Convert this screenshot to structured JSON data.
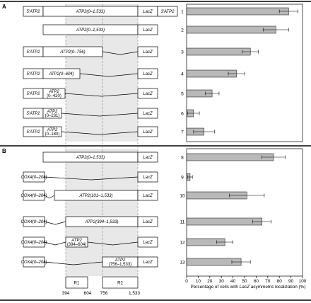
{
  "panels": {
    "a": "A",
    "b": "B"
  },
  "regions": {
    "r1": "R1",
    "r2": "R2"
  },
  "scale_ticks": [
    "394",
    "604",
    "756",
    "1,533"
  ],
  "rows": [
    {
      "num": "1",
      "segments": [
        {
          "t": "5′ATP2",
          "i": true
        },
        {
          "t": "ATP2(0–1,533)",
          "i": true
        },
        {
          "t": "LacZ",
          "i": true
        },
        {
          "t": "3′ATP2",
          "i": true
        }
      ]
    },
    {
      "num": "2",
      "segments": [
        {
          "t": "ATP2(0–1,533)",
          "i": true
        },
        {
          "t": "LacZ",
          "i": true
        }
      ]
    },
    {
      "num": "3",
      "segments": [
        {
          "t": "5′ATP2",
          "i": true
        },
        {
          "t": "ATP2(0–756)",
          "i": true
        },
        {
          "t": "LacZ",
          "i": true
        }
      ]
    },
    {
      "num": "4",
      "segments": [
        {
          "t": "5′ATP2",
          "i": true
        },
        {
          "t": "ATP2(0–604)",
          "i": true
        },
        {
          "t": "LacZ",
          "i": true
        }
      ]
    },
    {
      "num": "5",
      "segments": [
        {
          "t": "5′ATP2",
          "i": true
        },
        {
          "t": "ATP2",
          "i": true
        },
        {
          "t": "(0–420)",
          "i": false
        },
        {
          "t": "LacZ",
          "i": true
        }
      ]
    },
    {
      "num": "6",
      "segments": [
        {
          "t": "5′ATP2",
          "i": true
        },
        {
          "t": "ATP2",
          "i": true
        },
        {
          "t": "(0–231)",
          "i": false
        },
        {
          "t": "LacZ",
          "i": true
        }
      ]
    },
    {
      "num": "7",
      "segments": [
        {
          "t": "5′ATP2",
          "i": true
        },
        {
          "t": "ATP2",
          "i": true
        },
        {
          "t": "(0–180)",
          "i": false
        },
        {
          "t": "LacZ",
          "i": true
        }
      ]
    },
    {
      "num": "8",
      "segments": [
        {
          "t": "ATP2(0–1,533)",
          "i": true
        },
        {
          "t": "LacZ",
          "i": true
        }
      ]
    },
    {
      "num": "9",
      "segments": [
        {
          "t": "COX4(0–204)",
          "i": true
        },
        {
          "t": "LacZ",
          "i": true
        }
      ]
    },
    {
      "num": "10",
      "segments": [
        {
          "t": "COX4(0–204)",
          "i": true
        },
        {
          "t": "ATP2(101–1,533)",
          "i": true
        },
        {
          "t": "LacZ",
          "i": true
        }
      ]
    },
    {
      "num": "11",
      "segments": [
        {
          "t": "COX4(0–204)",
          "i": true
        },
        {
          "t": "ATP2(394–1,533)",
          "i": true
        },
        {
          "t": "LacZ",
          "i": true
        }
      ]
    },
    {
      "num": "12",
      "segments": [
        {
          "t": "COX4(0–204)",
          "i": true
        },
        {
          "t": "ATP2",
          "i": true
        },
        {
          "t": "(394–604)",
          "i": false
        },
        {
          "t": "LacZ",
          "i": true
        }
      ]
    },
    {
      "num": "13",
      "segments": [
        {
          "t": "COX4(0–204)",
          "i": true
        },
        {
          "t": "ATP2",
          "i": true
        },
        {
          "t": "(756–1,533)",
          "i": false
        },
        {
          "t": "LacZ",
          "i": true
        }
      ]
    }
  ],
  "chart_data": {
    "type": "bar",
    "orientation": "horizontal",
    "categories": [
      "1",
      "2",
      "3",
      "4",
      "5",
      "6",
      "7",
      "8",
      "9",
      "10",
      "11",
      "12",
      "13"
    ],
    "values": [
      88,
      77,
      55,
      43,
      22,
      6,
      15,
      75,
      3,
      52,
      65,
      33,
      47
    ],
    "errors": [
      8,
      11,
      7,
      7,
      6,
      5,
      9,
      10,
      2,
      15,
      8,
      7,
      8
    ],
    "xlim": [
      0,
      100
    ],
    "xticks": [
      "0",
      "10",
      "20",
      "30",
      "40",
      "50",
      "60",
      "70",
      "80",
      "90",
      "100"
    ],
    "xlabel_parts": {
      "pre": "Percentage of cells with ",
      "italic": "LacZ",
      "post": " asymmetric localization (%)"
    },
    "grid": false
  },
  "colors": {
    "bar": "#b9b9b9",
    "shade": "#e8e8e8",
    "rule": "#000000"
  }
}
